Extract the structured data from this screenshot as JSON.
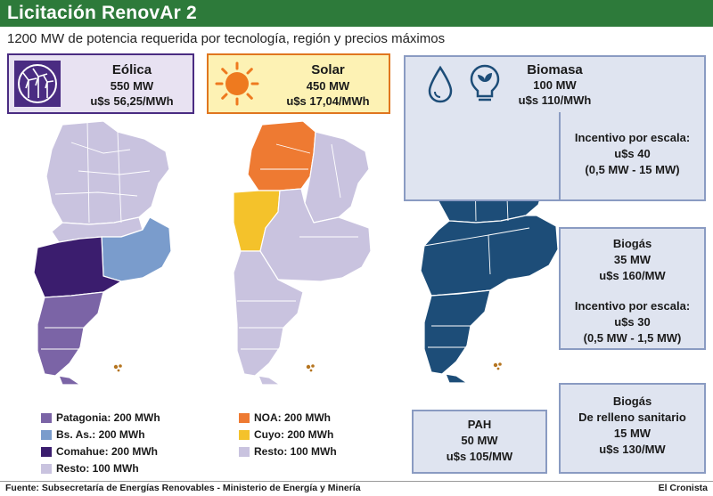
{
  "header": {
    "title": "Licitación RenovAr 2",
    "subtitle": "1200 MW de potencia requerida por tecnología, región y precios máximos"
  },
  "eolica": {
    "title": "Eólica",
    "power": "550 MW",
    "price": "u$s 56,25/MWh",
    "icon": "wind-turbines-icon",
    "legend": [
      {
        "label": "Patagonia: 200 MWh",
        "color": "#7b64a6"
      },
      {
        "label": "Bs. As.: 200 MWh",
        "color": "#7a9ccc"
      },
      {
        "label": "Comahue: 200 MWh",
        "color": "#3b1d6e"
      },
      {
        "label": "Resto: 100 MWh",
        "color": "#c9c3df"
      }
    ]
  },
  "solar": {
    "title": "Solar",
    "power": "450 MW",
    "price": "u$s 17,04/MWh",
    "icon": "sun-icon",
    "legend": [
      {
        "label": "NOA: 200 MWh",
        "color": "#ee7a32"
      },
      {
        "label": "Cuyo: 200 MWh",
        "color": "#f4c22b"
      },
      {
        "label": "Resto: 100 MWh",
        "color": "#c9c3df"
      }
    ]
  },
  "biomasa": {
    "title": "Biomasa",
    "power": "100 MW",
    "price": "u$s 110/MWh",
    "incentive_title": "Incentivo por escala:",
    "incentive_value": "u$s 40",
    "incentive_range": "(0,5 MW - 15 MW)",
    "icons": [
      "drop-icon",
      "lightbulb-leaf-icon"
    ]
  },
  "biogas": {
    "title": "Biogás",
    "power": "35 MW",
    "price": "u$s 160/MW",
    "incentive_title": "Incentivo por escala:",
    "incentive_value": "u$s 30",
    "incentive_range": "(0,5 MW - 1,5 MW)"
  },
  "pah": {
    "title": "PAH",
    "power": "50 MW",
    "price": "u$s 105/MW"
  },
  "biogas_relleno": {
    "title": "Biogás",
    "subtitle": "De relleno sanitario",
    "power": "15 MW",
    "price": "u$s 130/MW"
  },
  "map_colors": {
    "resto": "#c9c3df",
    "border": "#ffffff",
    "biomasa": "#1d4d78"
  },
  "footer": {
    "source": "Fuente: Subsecretaría de Energías Renovables - Ministerio de Energía y Minería",
    "brand": "El Cronista"
  }
}
